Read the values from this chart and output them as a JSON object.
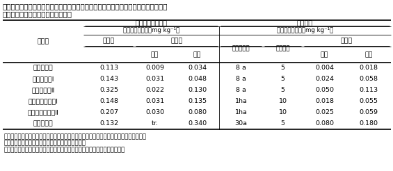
{
  "title_line1": "表２　ペットボトル栽培による玄米中カドミウム濃度の変動範囲と現地水田における",
  "title_line2": "　　　玄米中カドミウム濃度の比較",
  "rows": [
    {
      "soil": "褐色森林土",
      "pet_soil": "0.113",
      "pet_flood": "0.009",
      "pet_drain": "0.034",
      "area": "8 a",
      "samples": "5",
      "min": "0.004",
      "max": "0.018"
    },
    {
      "soil": "褐色低地土Ⅰ",
      "pet_soil": "0.143",
      "pet_flood": "0.031",
      "pet_drain": "0.048",
      "area": "8 a",
      "samples": "5",
      "min": "0.024",
      "max": "0.058"
    },
    {
      "soil": "褐色低地土Ⅱ",
      "pet_soil": "0.325",
      "pet_flood": "0.022",
      "pet_drain": "0.130",
      "area": "8 a",
      "samples": "5",
      "min": "0.050",
      "max": "0.113"
    },
    {
      "soil": "細粒質グライ土Ⅰ",
      "pet_soil": "0.148",
      "pet_flood": "0.031",
      "pet_drain": "0.135",
      "area": "1ha",
      "samples": "10",
      "min": "0.018",
      "max": "0.055"
    },
    {
      "soil": "細粒質グライ土Ⅱ",
      "pet_soil": "0.207",
      "pet_flood": "0.030",
      "pet_drain": "0.080",
      "area": "1ha",
      "samples": "10",
      "min": "0.025",
      "max": "0.059"
    },
    {
      "soil": "灰色低地土",
      "pet_soil": "0.132",
      "pet_flood": "tr.",
      "pet_drain": "0.340",
      "area": "30a",
      "samples": "5",
      "min": "0.080",
      "max": "0.180"
    }
  ],
  "notes": [
    "注、ペットボトル栽培へは調査圃１筆水田内数カ所から採取し混合した土壌を供試した。",
    "　　現地の採穂は、１筆水田の無作為地点で実施。",
    "　　栽培は農家あるいは営農指導員、カドミウム濃度の分析は著者が実施。"
  ],
  "bg_color": "#ffffff",
  "text_color": "#000000"
}
